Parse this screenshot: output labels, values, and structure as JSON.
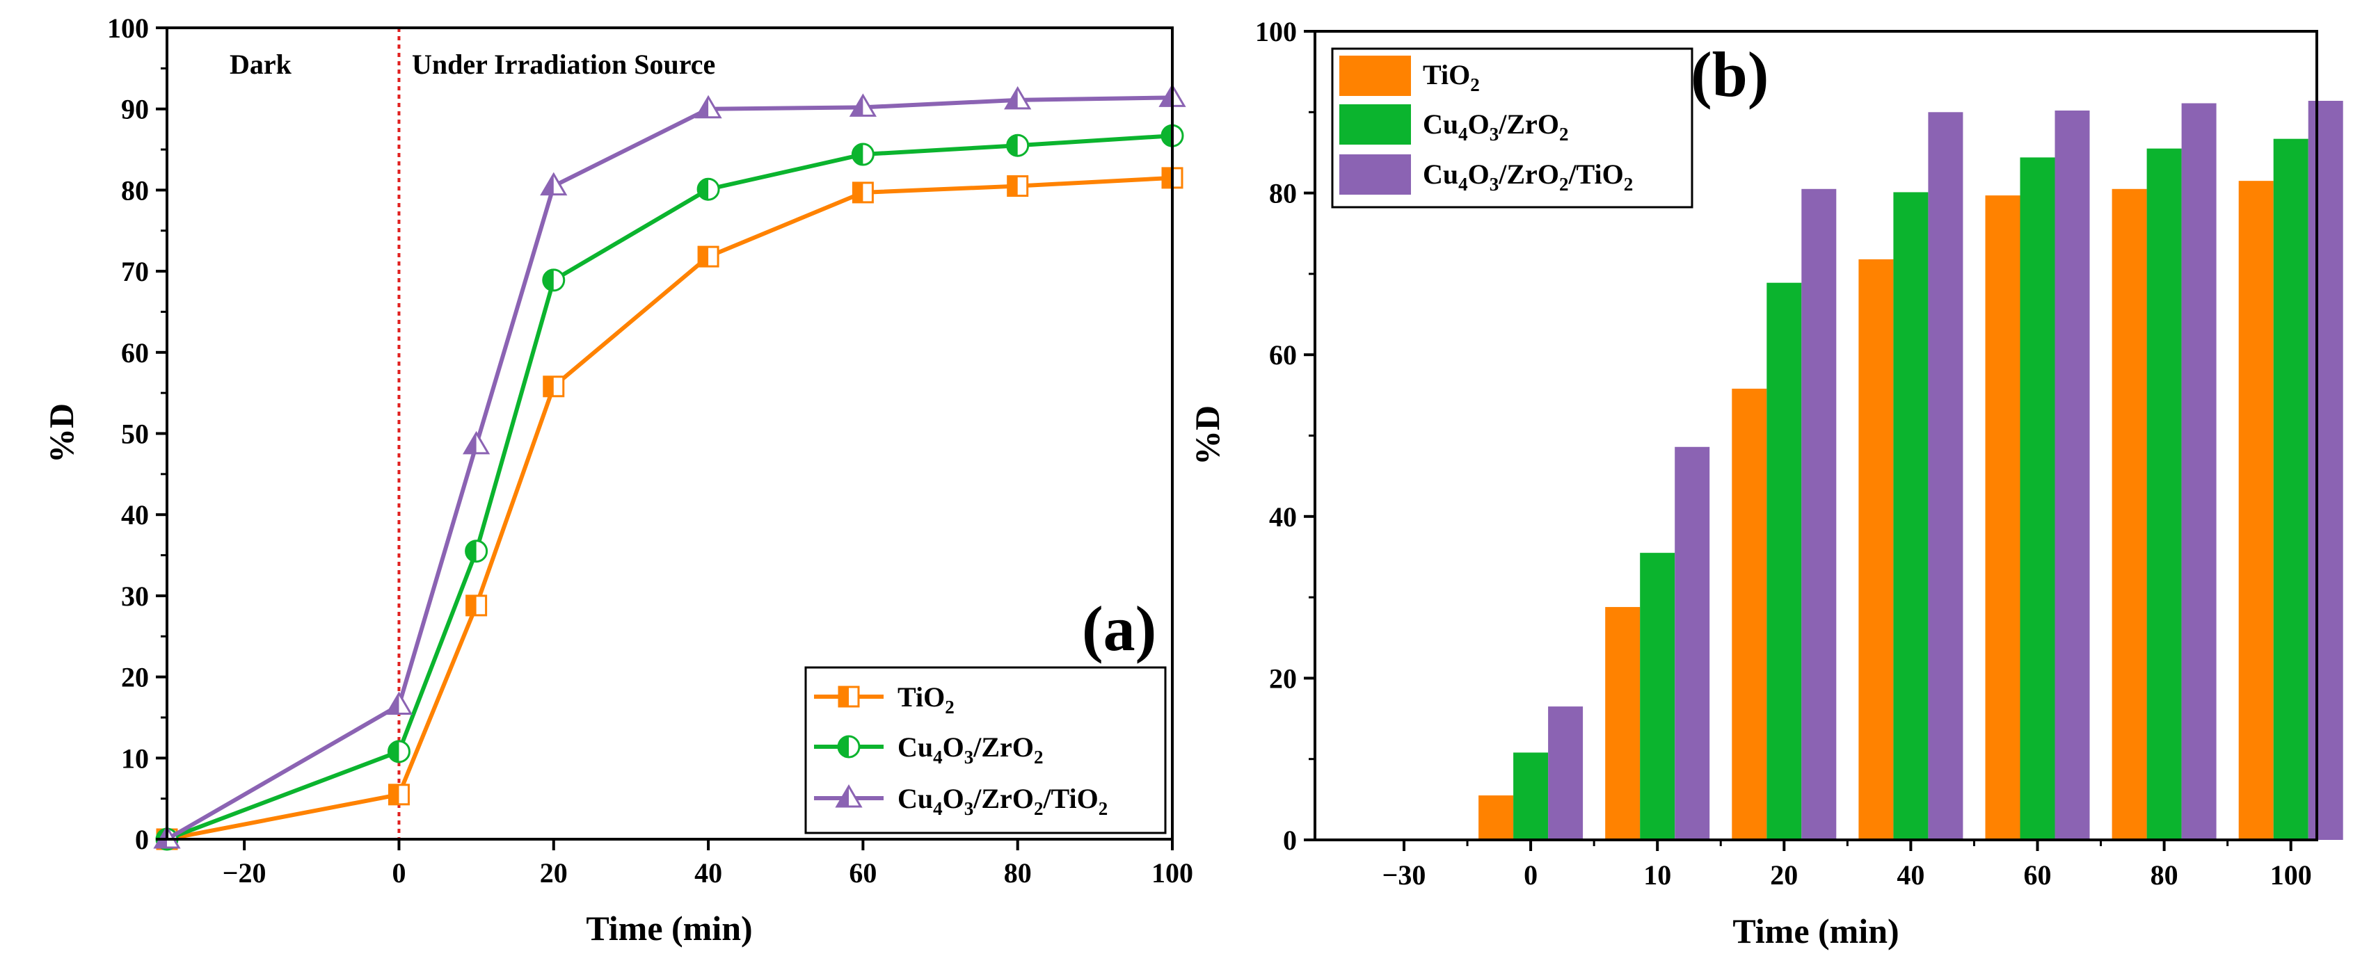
{
  "chart_data": [
    {
      "type": "line",
      "panel_label": "(a)",
      "xlabel": "Time (min)",
      "ylabel": "%D",
      "xlim": [
        -30,
        100
      ],
      "ylim": [
        0,
        100
      ],
      "x_ticks": [
        -20,
        0,
        20,
        40,
        60,
        80,
        100
      ],
      "y_ticks": [
        0,
        10,
        20,
        30,
        40,
        50,
        60,
        70,
        80,
        90,
        100
      ],
      "annotations": {
        "dark": "Dark",
        "irradiation": "Under Irradiation Source"
      },
      "divider_x": 0,
      "x": [
        -30,
        0,
        10,
        20,
        40,
        60,
        80,
        100
      ],
      "series": [
        {
          "name": "TiO2",
          "label": {
            "base1": "TiO",
            "sub1": "2"
          },
          "color": "#FF8200",
          "marker": "square",
          "values": [
            0,
            5.5,
            28.8,
            55.8,
            71.8,
            79.7,
            80.5,
            81.5
          ]
        },
        {
          "name": "Cu4O3/ZrO2",
          "label": {
            "a": "Cu",
            "b": "4",
            "c": "O",
            "d": "3",
            "e": "/ZrO",
            "f": "2"
          },
          "color": "#0BB42E",
          "marker": "circle",
          "values": [
            0,
            10.8,
            35.5,
            68.9,
            80.1,
            84.4,
            85.5,
            86.7
          ]
        },
        {
          "name": "Cu4O3/ZrO2/TiO2",
          "label": {
            "a": "Cu",
            "b": "4",
            "c": "O",
            "d": "3",
            "e": "/ZrO",
            "f": "2",
            "g": "/TiO",
            "h": "2"
          },
          "color": "#8B63B3",
          "marker": "triangle",
          "values": [
            0,
            16.5,
            48.6,
            80.5,
            90.0,
            90.2,
            91.1,
            91.4
          ]
        }
      ],
      "legend_position": "bottom-right"
    },
    {
      "type": "bar",
      "panel_label": "(b)",
      "xlabel": "Time (min)",
      "ylabel": "%D",
      "ylim": [
        0,
        100
      ],
      "y_ticks": [
        0,
        20,
        40,
        60,
        80,
        100
      ],
      "categories": [
        "-30",
        "0",
        "10",
        "20",
        "40",
        "60",
        "80",
        "100"
      ],
      "series": [
        {
          "name": "TiO2",
          "label": {
            "base1": "TiO",
            "sub1": "2"
          },
          "color": "#FF8200",
          "values": [
            0,
            5.5,
            28.8,
            55.8,
            71.8,
            79.7,
            80.5,
            81.5
          ]
        },
        {
          "name": "Cu4O3/ZrO2",
          "label": {
            "a": "Cu",
            "b": "4",
            "c": "O",
            "d": "3",
            "e": "/ZrO",
            "f": "2"
          },
          "color": "#0BB42E",
          "values": [
            0,
            10.8,
            35.5,
            68.9,
            80.1,
            84.4,
            85.5,
            86.7
          ]
        },
        {
          "name": "Cu4O3/ZrO2/TiO2",
          "label": {
            "a": "Cu",
            "b": "4",
            "c": "O",
            "d": "3",
            "e": "/ZrO",
            "f": "2",
            "g": "/TiO",
            "h": "2"
          },
          "color": "#8B63B3",
          "values": [
            0,
            16.5,
            48.6,
            80.5,
            90.0,
            90.2,
            91.1,
            91.4
          ]
        }
      ],
      "legend_position": "top-left"
    }
  ]
}
